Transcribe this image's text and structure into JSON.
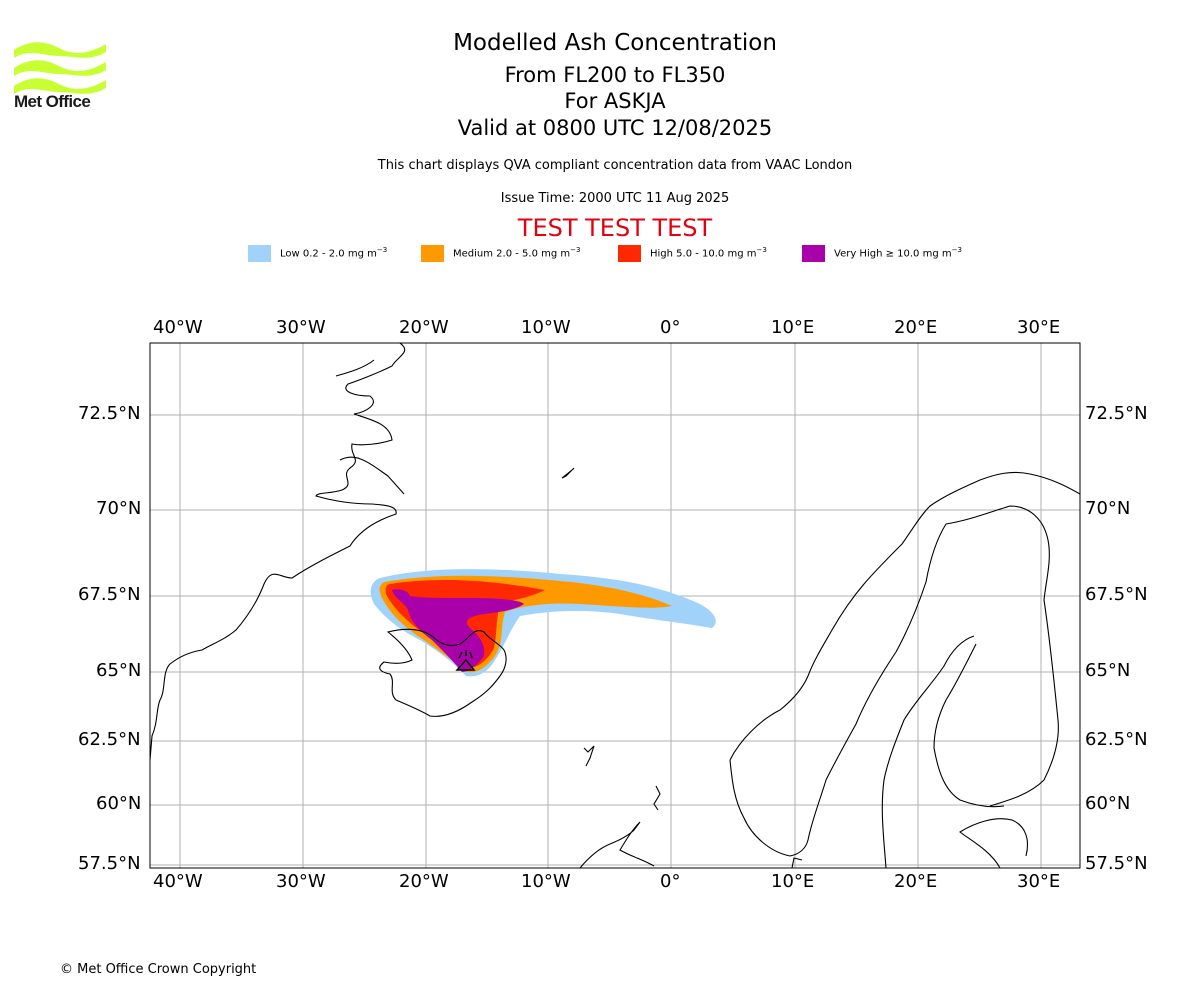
{
  "brand": {
    "logo_text": "Met Office",
    "logo_color": "#c8ff32"
  },
  "header": {
    "title": "Modelled Ash Concentration",
    "levels": "From FL200 to FL350",
    "volcano": "For ASKJA",
    "valid": "Valid at 0800 UTC 12/08/2025",
    "description": "This chart displays QVA compliant concentration data from VAAC London",
    "issue": "Issue Time: 2000 UTC 11 Aug 2025",
    "test_banner": "TEST TEST TEST",
    "test_color": "#e3000f"
  },
  "legend": [
    {
      "label": "Low 0.2 - 2.0 mg m",
      "unit_exp": "−3",
      "color": "#a0d2fa"
    },
    {
      "label": "Medium 2.0 - 5.0 mg m",
      "unit_exp": "−3",
      "color": "#ff9900"
    },
    {
      "label": "High 5.0 - 10.0 mg m",
      "unit_exp": "−3",
      "color": "#ff2800"
    },
    {
      "label": "Very High  ≥  10.0 mg m",
      "unit_exp": "−3",
      "color": "#aa00aa"
    }
  ],
  "map": {
    "lon_ticks": [
      "40°W",
      "30°W",
      "20°W",
      "10°W",
      "0°",
      "10°E",
      "20°E",
      "30°E"
    ],
    "lat_ticks": [
      "72.5°N",
      "70°N",
      "67.5°N",
      "65°N",
      "62.5°N",
      "60°N",
      "57.5°N"
    ],
    "grid": true
  },
  "footer": {
    "copyright": "© Met Office Crown Copyright"
  }
}
